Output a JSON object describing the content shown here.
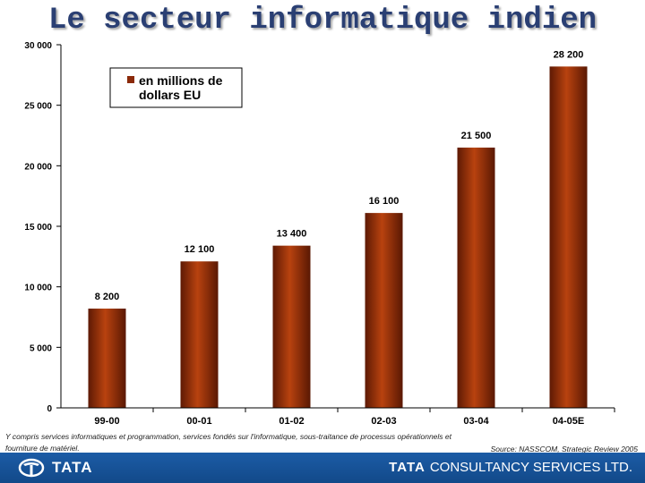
{
  "slide": {
    "title": "Le secteur informatique indien",
    "footnote": "Y compris services informatiques et programmation, services fondés sur l'informatique, sous-traitance de processus opérationnels et fourniture de matériel.",
    "source": "Source: NASSCOM, Strategic Review 2005"
  },
  "footer": {
    "left_logo_text": "TATA",
    "right_logo_strong": "TATA",
    "right_logo_rest": "CONSULTANCY SERVICES LTD.",
    "band_color": "#1a57a0"
  },
  "chart_data": {
    "type": "bar",
    "title": "Le secteur informatique indien",
    "categories": [
      "99-00",
      "00-01",
      "01-02",
      "02-03",
      "03-04",
      "04-05E"
    ],
    "values": [
      8200,
      12100,
      13400,
      16100,
      21500,
      28200
    ],
    "value_labels": [
      "8 200",
      "12 100",
      "13 400",
      "16 100",
      "21 500",
      "28 200"
    ],
    "series": [
      {
        "name": "en millions de dollars EU",
        "values": [
          8200,
          12100,
          13400,
          16100,
          21500,
          28200
        ]
      }
    ],
    "ylim": [
      0,
      30000
    ],
    "yticks": [
      0,
      5000,
      10000,
      15000,
      20000,
      25000,
      30000
    ],
    "ytick_labels": [
      "0",
      "5 000",
      "10 000",
      "15 000",
      "20 000",
      "25 000",
      "30 000"
    ],
    "legend": {
      "line1": "en millions de",
      "line2": "dollars EU",
      "position": "top-left"
    },
    "bar_color": "#8b2a0a",
    "xlabel": "",
    "ylabel": ""
  }
}
